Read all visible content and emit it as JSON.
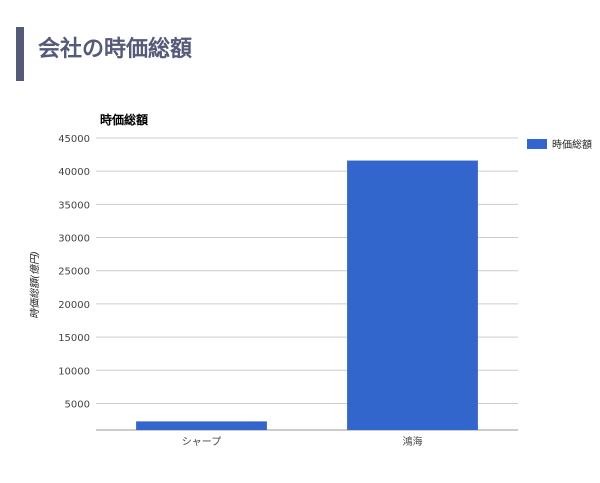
{
  "slide": {
    "title": "会社の時価総額"
  },
  "colors": {
    "accent": "#55597a",
    "bar": "#3366cc",
    "grid": "#cccccc",
    "axis_text": "#444444"
  },
  "chart_data": {
    "type": "bar",
    "title": "時価総額",
    "ylabel": "時価総額(億円)",
    "xlabel": "",
    "categories": [
      "シャープ",
      "鴻海"
    ],
    "series": [
      {
        "name": "時価総額",
        "values": [
          2300,
          41600
        ]
      }
    ],
    "ylim": [
      1000,
      45000
    ],
    "yticks": [
      5000,
      10000,
      15000,
      20000,
      25000,
      30000,
      35000,
      40000,
      45000
    ],
    "grid": true,
    "legend": "right"
  }
}
